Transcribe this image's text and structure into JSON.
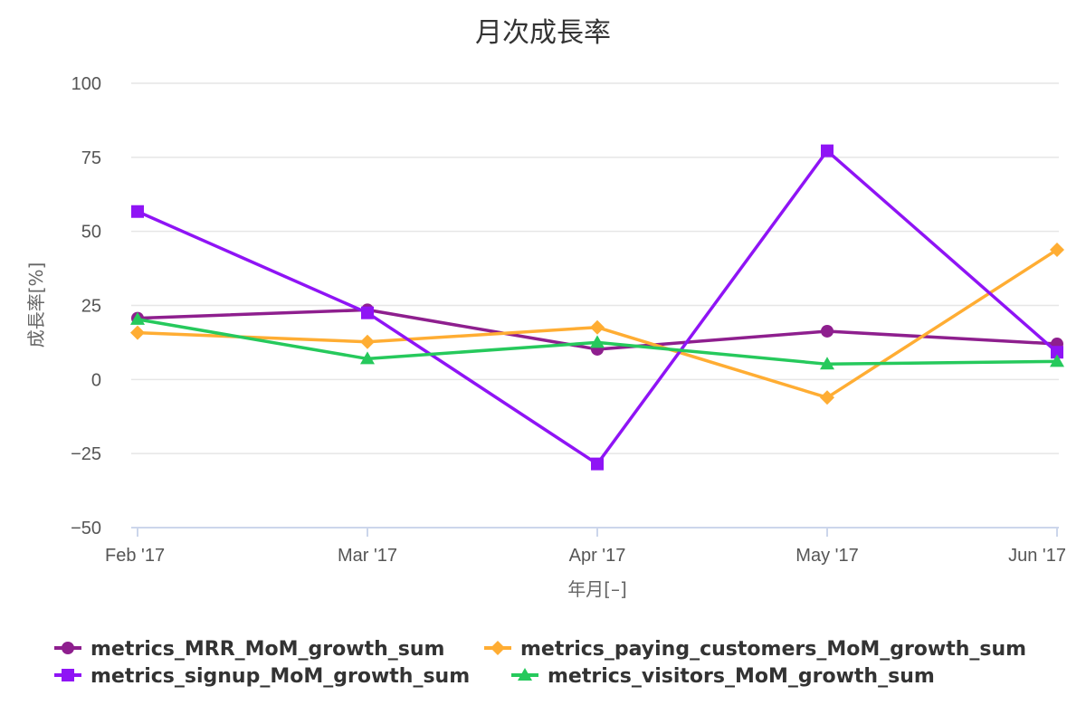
{
  "chart_data": {
    "type": "line",
    "title": "月次成長率",
    "xlabel": "年月[–]",
    "ylabel": "成長率[%]",
    "categories": [
      "Feb '17",
      "Mar '17",
      "Apr '17",
      "May '17",
      "Jun '17"
    ],
    "ylim": [
      -50,
      100
    ],
    "yticks": [
      100,
      75,
      50,
      25,
      0,
      -25,
      -50
    ],
    "ytick_labels": [
      "100",
      "75",
      "50",
      "25",
      "0",
      "−25",
      "−50"
    ],
    "grid": true,
    "legend_position": "bottom",
    "series": [
      {
        "name": "metrics_MRR_MoM_growth_sum",
        "color": "#8e1f8e",
        "marker": "circle",
        "values": [
          20.7,
          23.5,
          10.2,
          16.3,
          12.0
        ]
      },
      {
        "name": "metrics_paying_customers_MoM_growth_sum",
        "color": "#ffad33",
        "marker": "diamond",
        "values": [
          15.8,
          12.7,
          17.6,
          -6.1,
          43.8
        ]
      },
      {
        "name": "metrics_signup_MoM_growth_sum",
        "color": "#8f14f5",
        "marker": "square",
        "values": [
          56.7,
          22.5,
          -28.5,
          77.2,
          9.2
        ]
      },
      {
        "name": "metrics_visitors_MoM_growth_sum",
        "color": "#26c95c",
        "marker": "triangle",
        "values": [
          20.3,
          7.0,
          12.5,
          5.2,
          6.1
        ]
      }
    ]
  }
}
